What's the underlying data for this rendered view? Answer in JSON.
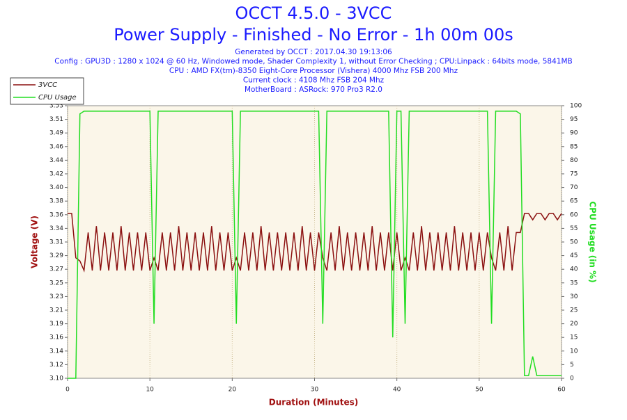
{
  "chart_data": {
    "type": "line",
    "title": "OCCT 4.5.0 - 3VCC",
    "subtitle": "Power Supply - Finished - No Error - 1h 00m 00s",
    "info": [
      "Generated by OCCT : 2017.04.30 19:13:06",
      "Config : GPU3D : 1280 x 1024 @ 60 Hz, Windowed mode, Shader Complexity 1, without Error Checking ; CPU:Linpack : 64bits mode, 5841MB",
      "CPU : AMD FX(tm)-8350 Eight-Core Processor (Vishera) 4000 Mhz FSB 200 Mhz",
      "Current clock : 4108 Mhz FSB 204 Mhz",
      "MotherBoard : ASRock: 970 Pro3 R2.0"
    ],
    "x_label": "Duration (Minutes)",
    "y_label": "Voltage (V)",
    "y2_label": "CPU Usage (in %)",
    "xlim": [
      0,
      60
    ],
    "xticks": [
      0,
      10,
      20,
      30,
      40,
      50,
      60
    ],
    "ylim": [
      3.1,
      3.53
    ],
    "yticks": [
      {
        "value": 3.1,
        "label": "3.10"
      },
      {
        "value": 3.1215,
        "label": "3.12"
      },
      {
        "value": 3.143,
        "label": "3.14"
      },
      {
        "value": 3.1645,
        "label": "3.16"
      },
      {
        "value": 3.186,
        "label": "3.19"
      },
      {
        "value": 3.2075,
        "label": "3.21"
      },
      {
        "value": 3.229,
        "label": "3.23"
      },
      {
        "value": 3.2505,
        "label": "3.25"
      },
      {
        "value": 3.272,
        "label": "3.27"
      },
      {
        "value": 3.2935,
        "label": "3.29"
      },
      {
        "value": 3.315,
        "label": "3.31"
      },
      {
        "value": 3.3365,
        "label": "3.34"
      },
      {
        "value": 3.358,
        "label": "3.36"
      },
      {
        "value": 3.3795,
        "label": "3.38"
      },
      {
        "value": 3.401,
        "label": "3.40"
      },
      {
        "value": 3.4225,
        "label": "3.42"
      },
      {
        "value": 3.444,
        "label": "3.44"
      },
      {
        "value": 3.4655,
        "label": "3.46"
      },
      {
        "value": 3.487,
        "label": "3.49"
      },
      {
        "value": 3.5085,
        "label": "3.51"
      },
      {
        "value": 3.53,
        "label": "3.53"
      }
    ],
    "y2lim": [
      0,
      100
    ],
    "y2ticks": [
      0,
      5,
      10,
      15,
      20,
      25,
      30,
      35,
      40,
      45,
      50,
      55,
      60,
      65,
      70,
      75,
      80,
      85,
      90,
      95,
      100
    ],
    "legend": "top-left",
    "x": [
      0,
      0.5,
      1,
      1.5,
      2,
      2.5,
      3,
      3.5,
      4,
      4.5,
      5,
      5.5,
      6,
      6.5,
      7,
      7.5,
      8,
      8.5,
      9,
      9.5,
      10,
      10.5,
      11,
      11.5,
      12,
      12.5,
      13,
      13.5,
      14,
      14.5,
      15,
      15.5,
      16,
      16.5,
      17,
      17.5,
      18,
      18.5,
      19,
      19.5,
      20,
      20.5,
      21,
      21.5,
      22,
      22.5,
      23,
      23.5,
      24,
      24.5,
      25,
      25.5,
      26,
      26.5,
      27,
      27.5,
      28,
      28.5,
      29,
      29.5,
      30,
      30.5,
      31,
      31.5,
      32,
      32.5,
      33,
      33.5,
      34,
      34.5,
      35,
      35.5,
      36,
      36.5,
      37,
      37.5,
      38,
      38.5,
      39,
      39.5,
      40,
      40.5,
      41,
      41.5,
      42,
      42.5,
      43,
      43.5,
      44,
      44.5,
      45,
      45.5,
      46,
      46.5,
      47,
      47.5,
      48,
      48.5,
      49,
      49.5,
      50,
      50.5,
      51,
      51.5,
      52,
      52.5,
      53,
      53.5,
      54,
      54.5,
      55,
      55.5,
      56,
      56.5,
      57,
      57.5,
      58,
      58.5,
      59,
      59.5,
      60
    ],
    "series": [
      {
        "name": "3VCC",
        "color": "#8b1010",
        "values": [
          3.36,
          3.36,
          3.29,
          3.285,
          3.27,
          3.33,
          3.27,
          3.34,
          3.27,
          3.33,
          3.27,
          3.33,
          3.27,
          3.34,
          3.27,
          3.33,
          3.27,
          3.33,
          3.27,
          3.33,
          3.27,
          3.29,
          3.27,
          3.33,
          3.27,
          3.33,
          3.27,
          3.34,
          3.27,
          3.33,
          3.27,
          3.33,
          3.27,
          3.33,
          3.27,
          3.34,
          3.27,
          3.33,
          3.27,
          3.33,
          3.27,
          3.29,
          3.27,
          3.33,
          3.27,
          3.33,
          3.27,
          3.34,
          3.27,
          3.33,
          3.27,
          3.33,
          3.27,
          3.33,
          3.27,
          3.33,
          3.27,
          3.34,
          3.27,
          3.33,
          3.27,
          3.33,
          3.29,
          3.27,
          3.33,
          3.27,
          3.34,
          3.27,
          3.33,
          3.27,
          3.33,
          3.27,
          3.33,
          3.27,
          3.34,
          3.27,
          3.33,
          3.27,
          3.33,
          3.27,
          3.33,
          3.27,
          3.29,
          3.27,
          3.33,
          3.27,
          3.34,
          3.27,
          3.33,
          3.27,
          3.33,
          3.27,
          3.33,
          3.27,
          3.34,
          3.27,
          3.33,
          3.27,
          3.33,
          3.27,
          3.33,
          3.27,
          3.33,
          3.29,
          3.27,
          3.33,
          3.27,
          3.34,
          3.27,
          3.33,
          3.33,
          3.36,
          3.36,
          3.35,
          3.36,
          3.36,
          3.35,
          3.36,
          3.36,
          3.35,
          3.36
        ]
      },
      {
        "name": "CPU Usage",
        "color": "#22dd22",
        "axis": "y2",
        "values": [
          0,
          0,
          0,
          97,
          98,
          98,
          98,
          98,
          98,
          98,
          98,
          98,
          98,
          98,
          98,
          98,
          98,
          98,
          98,
          98,
          98,
          20,
          98,
          98,
          98,
          98,
          98,
          98,
          98,
          98,
          98,
          98,
          98,
          98,
          98,
          98,
          98,
          98,
          98,
          98,
          98,
          20,
          98,
          98,
          98,
          98,
          98,
          98,
          98,
          98,
          98,
          98,
          98,
          98,
          98,
          98,
          98,
          98,
          98,
          98,
          98,
          98,
          20,
          98,
          98,
          98,
          98,
          98,
          98,
          98,
          98,
          98,
          98,
          98,
          98,
          98,
          98,
          98,
          98,
          15,
          98,
          98,
          20,
          98,
          98,
          98,
          98,
          98,
          98,
          98,
          98,
          98,
          98,
          98,
          98,
          98,
          98,
          98,
          98,
          98,
          98,
          98,
          98,
          20,
          98,
          98,
          98,
          98,
          98,
          98,
          97,
          1,
          1,
          8,
          1,
          1,
          1,
          1,
          1,
          1,
          1
        ]
      }
    ]
  }
}
